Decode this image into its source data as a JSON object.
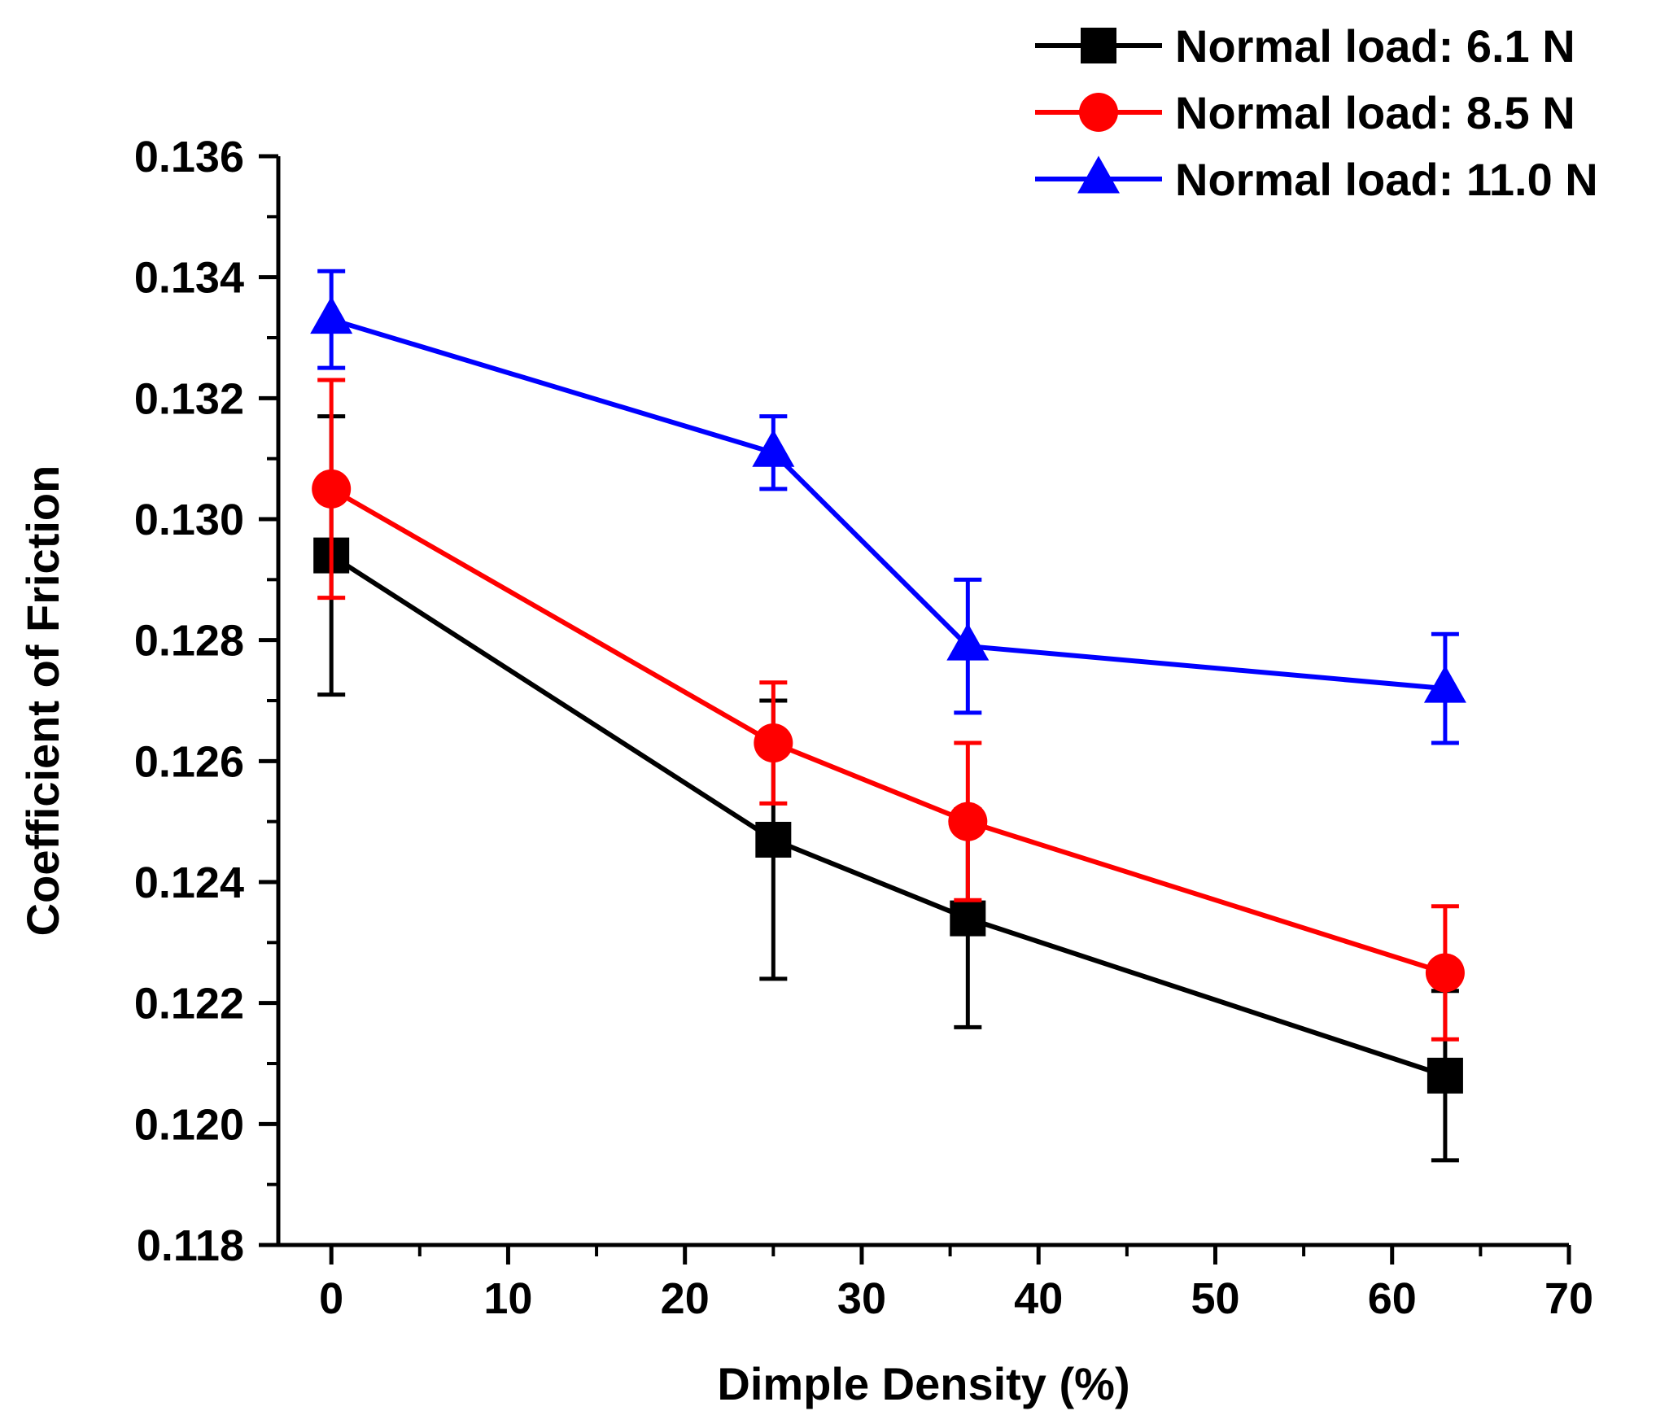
{
  "chart_data": {
    "type": "line",
    "title": "",
    "xlabel": "Dimple Density (%)",
    "ylabel": "Coefficient of Friction",
    "xlim": [
      -3,
      70
    ],
    "ylim": [
      0.118,
      0.136
    ],
    "xticks": [
      0,
      10,
      20,
      30,
      40,
      50,
      60,
      70
    ],
    "yticks": [
      0.118,
      0.12,
      0.122,
      0.124,
      0.126,
      0.128,
      0.13,
      0.132,
      0.134,
      0.136
    ],
    "xtick_labels": [
      "0",
      "10",
      "20",
      "30",
      "40",
      "50",
      "60",
      "70"
    ],
    "ytick_labels": [
      "0.118",
      "0.120",
      "0.122",
      "0.124",
      "0.126",
      "0.128",
      "0.130",
      "0.132",
      "0.134",
      "0.136"
    ],
    "legend_position": "top-right",
    "x": [
      0,
      25,
      36,
      63
    ],
    "series": [
      {
        "name": "Normal load: 6.1 N",
        "color": "#000000",
        "marker": "square",
        "values": [
          0.1294,
          0.1247,
          0.1234,
          0.1208
        ],
        "error": [
          0.0023,
          0.0023,
          0.0018,
          0.0014
        ]
      },
      {
        "name": "Normal load: 8.5 N",
        "color": "#ff0000",
        "marker": "circle",
        "values": [
          0.1305,
          0.1263,
          0.125,
          0.1225
        ],
        "error": [
          0.0018,
          0.001,
          0.0013,
          0.0011
        ]
      },
      {
        "name": "Normal load: 11.0 N",
        "color": "#0000ff",
        "marker": "triangle",
        "values": [
          0.1333,
          0.1311,
          0.1279,
          0.1272
        ],
        "error": [
          0.0008,
          0.0006,
          0.0011,
          0.0009
        ]
      }
    ]
  }
}
